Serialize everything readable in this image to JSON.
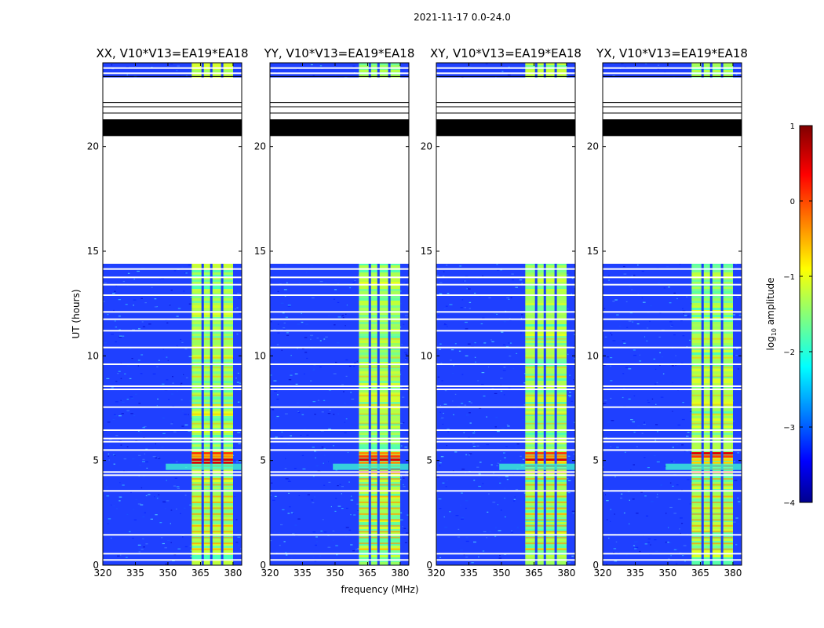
{
  "chart_data": {
    "type": "heatmap",
    "suptitle": "2021-11-17 0.0-24.0",
    "xlabel": "frequency (MHz)",
    "ylabel": "UT (hours)",
    "xlim": [
      320,
      384
    ],
    "ylim": [
      0,
      24
    ],
    "xticks": [
      320,
      335,
      350,
      365,
      380
    ],
    "yticks": [
      0,
      5,
      10,
      15,
      20
    ],
    "panels": [
      {
        "title": "XX, V10*V13=EA19*EA18",
        "pol": "XX"
      },
      {
        "title": "YY, V10*V13=EA19*EA18",
        "pol": "YY"
      },
      {
        "title": "XY, V10*V13=EA19*EA18",
        "pol": "XY"
      },
      {
        "title": "YX, V10*V13=EA19*EA18",
        "pol": "YX"
      }
    ],
    "colorbar": {
      "label": "log10 amplitude",
      "ticks": [
        1,
        0,
        -1,
        -2,
        -3,
        -4
      ],
      "vmin": -4,
      "vmax": 1,
      "colormap": "jet"
    },
    "features": {
      "blank_interval_hours": [
        14.4,
        23.3
      ],
      "dense_flagged_hours": [
        20.5,
        21.3
      ],
      "bright_band_mhz": [
        361,
        380
      ],
      "channel_gaps_mhz": [
        366,
        370,
        375
      ],
      "flagged_row_hours": [
        0.25,
        0.55,
        1.45,
        3.55,
        4.3,
        4.45,
        5.5,
        5.9,
        6.05,
        6.45,
        7.55,
        8.4,
        8.55,
        9.6,
        10.4,
        11.2,
        11.75,
        12.1,
        12.9,
        13.4,
        13.75,
        14.15,
        23.5,
        23.75
      ],
      "strongest_interval_hours": [
        4.4,
        5.4
      ]
    }
  }
}
